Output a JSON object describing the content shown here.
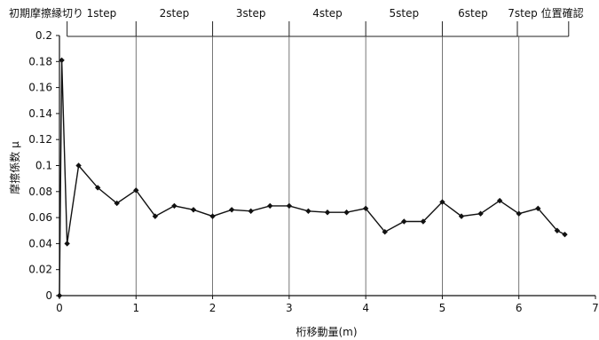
{
  "chart_data": {
    "type": "line",
    "xlabel": "桁移動量(m)",
    "ylabel": "摩擦係数 μ",
    "xlim": [
      0,
      7
    ],
    "ylim": [
      0,
      0.2
    ],
    "x_ticks": [
      0,
      1,
      2,
      3,
      4,
      5,
      6,
      7
    ],
    "y_ticks": [
      0,
      0.02,
      0.04,
      0.06,
      0.08,
      0.1,
      0.12,
      0.14,
      0.16,
      0.18,
      0.2
    ],
    "x_tick_labels": [
      "0",
      "1",
      "2",
      "3",
      "4",
      "5",
      "6",
      "7"
    ],
    "y_tick_labels": [
      "0",
      "0.02",
      "0.04",
      "0.06",
      "0.08",
      "0.1",
      "0.12",
      "0.14",
      "0.16",
      "0.18",
      "0.2"
    ],
    "grid": "vertical",
    "step_boundaries": [
      0.1,
      1.0,
      2.0,
      3.0,
      4.0,
      5.0,
      5.98,
      6.65
    ],
    "step_labels": [
      {
        "text": "初期摩擦縁切り",
        "at": 0.0
      },
      {
        "text": "1step",
        "at": 0.55
      },
      {
        "text": "2step",
        "at": 1.5
      },
      {
        "text": "3step",
        "at": 2.5
      },
      {
        "text": "4step",
        "at": 3.5
      },
      {
        "text": "5step",
        "at": 4.5
      },
      {
        "text": "6step",
        "at": 5.4
      },
      {
        "text": "7step 位置確認",
        "at": 6.35
      }
    ],
    "series": [
      {
        "x": [
          0.0,
          0.03,
          0.1,
          0.25,
          0.5,
          0.75,
          1.0,
          1.25,
          1.5,
          1.75,
          2.0,
          2.25,
          2.5,
          2.75,
          3.0,
          3.25,
          3.5,
          3.75,
          4.0,
          4.25,
          4.5,
          4.75,
          5.0,
          5.25,
          5.5,
          5.75,
          6.0,
          6.25,
          6.5,
          6.6
        ],
        "y": [
          0.0,
          0.181,
          0.04,
          0.1,
          0.083,
          0.071,
          0.081,
          0.061,
          0.069,
          0.066,
          0.061,
          0.066,
          0.065,
          0.069,
          0.069,
          0.065,
          0.064,
          0.064,
          0.067,
          0.049,
          0.057,
          0.057,
          0.072,
          0.061,
          0.063,
          0.073,
          0.063,
          0.067,
          0.05,
          0.047
        ]
      }
    ]
  }
}
